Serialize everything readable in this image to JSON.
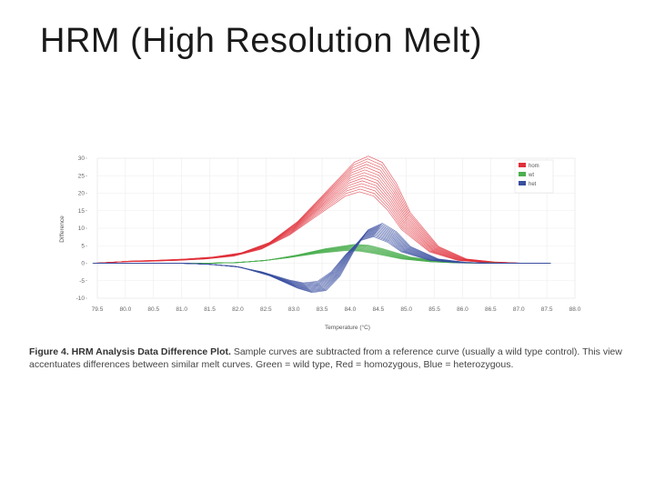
{
  "slide": {
    "title": "HRM (High Resolution Melt)"
  },
  "caption": {
    "figure_label": "Figure 4. HRM Analysis Data Difference Plot.",
    "text": " Sample curves are subtracted from a reference curve (usually a wild type control). This view accentuates differences between similar melt curves. Green = wild type, Red = homozygous, Blue = heterozygous."
  },
  "chart_data": {
    "type": "line",
    "xlabel": "Temperature (°C)",
    "ylabel": "Difference",
    "xlim": [
      79.5,
      88.0
    ],
    "ylim": [
      -10,
      30
    ],
    "x_ticks": [
      "79.5",
      "80.0",
      "80.5",
      "81.0",
      "81.5",
      "82.0",
      "82.5",
      "83.0",
      "83.5",
      "84.0",
      "84.5",
      "85.0",
      "85.5",
      "86.0",
      "86.5",
      "87.0",
      "87.5",
      "88.0"
    ],
    "y_ticks": [
      "30",
      "25",
      "20",
      "15",
      "10",
      "5",
      "0",
      "-5",
      "-10"
    ],
    "grid": true,
    "legend_position": "top-right",
    "colors": {
      "hom": "#e0303a",
      "wt": "#4caf50",
      "het": "#3a4fa0"
    },
    "series": [
      {
        "name": "hom",
        "curves": [
          {
            "x": [
              79.5,
              80.0,
              80.5,
              81.0,
              81.5,
              82.0,
              82.5,
              83.0,
              83.5,
              84.0,
              84.25,
              84.5,
              84.75,
              85.0,
              85.5,
              86.0,
              86.5,
              87.0,
              87.5
            ],
            "y": [
              0,
              0.5,
              0.7,
              1,
              1.5,
              2.5,
              5,
              10,
              17,
              24,
              25.5,
              24,
              19,
              12,
              4,
              1,
              0.3,
              0,
              0
            ]
          }
        ]
      },
      {
        "name": "wt",
        "curves": [
          {
            "x": [
              79.5,
              80.0,
              80.5,
              81.0,
              81.5,
              82.0,
              82.5,
              83.0,
              83.5,
              84.0,
              84.25,
              84.5,
              84.75,
              85.0,
              85.5,
              86.0,
              87.0,
              87.5
            ],
            "y": [
              0,
              0,
              0,
              0,
              0,
              0.2,
              0.8,
              2,
              3.5,
              4.5,
              4.3,
              3.5,
              2.5,
              1.5,
              0.5,
              0.1,
              0,
              0
            ]
          }
        ]
      },
      {
        "name": "het",
        "curves": [
          {
            "x": [
              79.5,
              80.0,
              80.5,
              81.0,
              81.5,
              82.0,
              82.5,
              83.0,
              83.25,
              83.5,
              83.75,
              84.0,
              84.25,
              84.5,
              84.75,
              85.0,
              85.5,
              86.0,
              86.5,
              87.5
            ],
            "y": [
              0,
              0,
              0,
              0,
              -0.3,
              -1,
              -3,
              -6,
              -7,
              -6.5,
              -3,
              3,
              8,
              9.5,
              7.5,
              4,
              1,
              0.2,
              0,
              0
            ]
          }
        ]
      }
    ]
  }
}
